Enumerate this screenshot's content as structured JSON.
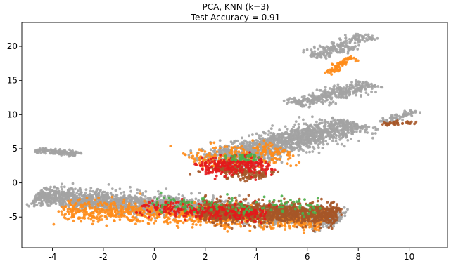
{
  "chart_data": {
    "type": "scatter",
    "title": "PCA, KNN (k=3)",
    "subtitle": "Test Accuracy = 0.91",
    "xlabel": "",
    "ylabel": "",
    "xlim": [
      -5.2,
      11.5
    ],
    "ylim": [
      -9.5,
      23.5
    ],
    "grid": false,
    "legend": "none",
    "x_ticks": [
      {
        "label": "-4",
        "value": -4.0
      },
      {
        "label": "-2",
        "value": -2.0
      },
      {
        "label": "0",
        "value": 0.0
      },
      {
        "label": "2",
        "value": 2.0
      },
      {
        "label": "4",
        "value": 4.0
      },
      {
        "label": "6",
        "value": 6.0
      },
      {
        "label": "8",
        "value": 8.0
      },
      {
        "label": "10",
        "value": 10.0
      }
    ],
    "y_ticks": [
      {
        "label": "20",
        "value": 20
      },
      {
        "label": "15",
        "value": 15
      },
      {
        "label": "10",
        "value": 10
      },
      {
        "label": "5",
        "value": 5
      },
      {
        "label": "0",
        "value": 0
      },
      {
        "label": "-5",
        "value": -5
      }
    ],
    "colors": {
      "gray": "#a3a3a3",
      "orange": "#ff8c1a",
      "brown": "#a65628",
      "red": "#e41a1c",
      "green": "#4daf4a"
    },
    "clusters": [
      {
        "color": "gray",
        "n": 2600,
        "x": -4.6,
        "y": -1.8,
        "dx": 11.8,
        "dy": -3.6,
        "w": 1.5
      },
      {
        "color": "gray",
        "n": 1500,
        "x": 2.4,
        "y": 3.0,
        "dx": 5.4,
        "dy": 5.8,
        "w": 1.5
      },
      {
        "color": "gray",
        "n": 350,
        "x": 5.5,
        "y": 11.5,
        "dx": 3.0,
        "dy": 3.0,
        "w": 0.8
      },
      {
        "color": "gray",
        "n": 200,
        "x": 6.2,
        "y": 18.5,
        "dx": 2.2,
        "dy": 3.0,
        "w": 0.7
      },
      {
        "color": "gray",
        "n": 60,
        "x": 8.9,
        "y": 8.8,
        "dx": 1.4,
        "dy": 1.8,
        "w": 0.3
      },
      {
        "color": "gray",
        "n": 140,
        "x": -4.6,
        "y": 4.8,
        "dx": 1.7,
        "dy": -0.6,
        "w": 0.3
      },
      {
        "color": "orange",
        "n": 900,
        "x": -3.6,
        "y": -3.8,
        "dx": 10.2,
        "dy": -1.8,
        "w": 1.7
      },
      {
        "color": "orange",
        "n": 240,
        "x": 1.6,
        "y": 3.0,
        "dx": 3.6,
        "dy": 1.6,
        "w": 1.8
      },
      {
        "color": "orange",
        "n": 70,
        "x": 6.8,
        "y": 16.0,
        "dx": 1.0,
        "dy": 2.6,
        "w": 0.2
      },
      {
        "color": "brown",
        "n": 1200,
        "x": 1.8,
        "y": -4.2,
        "dx": 5.4,
        "dy": -0.4,
        "w": 1.6
      },
      {
        "color": "brown",
        "n": 200,
        "x": 2.4,
        "y": 2.6,
        "dx": 1.8,
        "dy": -1.8,
        "w": 1.0
      },
      {
        "color": "brown",
        "n": 40,
        "x": 9.0,
        "y": 8.6,
        "dx": 1.2,
        "dy": 0.3,
        "w": 0.2
      },
      {
        "color": "red",
        "n": 260,
        "x": -0.5,
        "y": -3.5,
        "dx": 5.0,
        "dy": -1.2,
        "w": 1.3
      },
      {
        "color": "red",
        "n": 220,
        "x": 1.8,
        "y": 2.2,
        "dx": 2.6,
        "dy": 0.8,
        "w": 1.4
      },
      {
        "color": "green",
        "n": 120,
        "x": 0.0,
        "y": -3.0,
        "dx": 6.5,
        "dy": -0.5,
        "w": 1.3
      },
      {
        "color": "green",
        "n": 40,
        "x": 3.0,
        "y": 3.5,
        "dx": 1.0,
        "dy": 0.5,
        "w": 0.5
      }
    ]
  }
}
